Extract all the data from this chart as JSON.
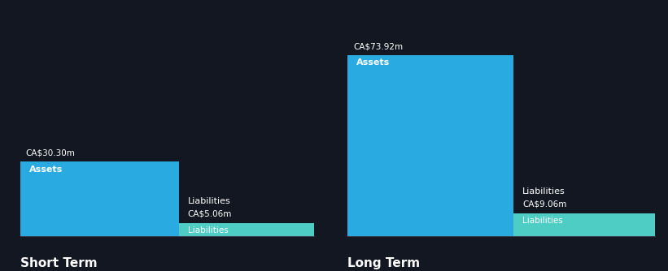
{
  "background_color": "#131722",
  "text_color": "#ffffff",
  "label_color_dim": "#cccccc",
  "bar_color_assets": "#29ABE2",
  "bar_color_liabilities": "#4ECDC4",
  "short_term": {
    "assets_value": 30.3,
    "liabilities_value": 5.06,
    "label": "Short Term"
  },
  "long_term": {
    "assets_value": 73.92,
    "liabilities_value": 9.06,
    "label": "Long Term"
  },
  "assets_label": "Assets",
  "liabilities_label": "Liabilities",
  "global_max": 73.92
}
